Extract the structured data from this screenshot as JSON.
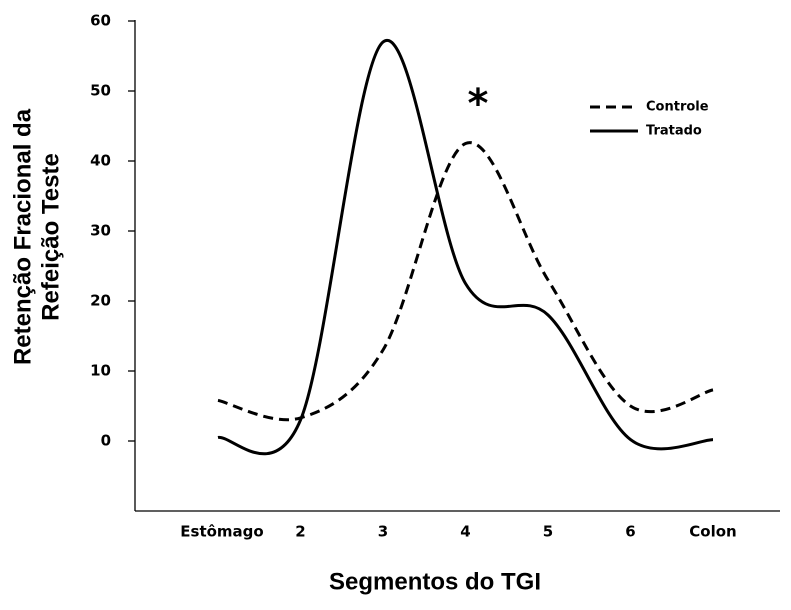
{
  "chart_data": {
    "type": "line",
    "xlabel": "Segmentos do TGI",
    "ylabel": [
      "Retenção Fracional da",
      "Refeição Teste"
    ],
    "annotation": "*",
    "categories": [
      "Estômago",
      "2",
      "3",
      "4",
      "5",
      "6",
      "Colon"
    ],
    "series": [
      {
        "name": "Controle",
        "color": "#000000",
        "dash": true,
        "values": [
          5.8,
          3.3,
          13,
          42.5,
          23,
          5,
          7.3
        ]
      },
      {
        "name": "Tratado",
        "color": "#000000",
        "dash": false,
        "values": [
          0.5,
          3,
          57,
          22.5,
          18,
          0.2,
          0.2
        ]
      }
    ],
    "ylim": [
      -10,
      60
    ],
    "yticks": [
      0,
      10,
      20,
      30,
      40,
      50,
      60
    ],
    "smooth": true,
    "legend": "upper right"
  }
}
